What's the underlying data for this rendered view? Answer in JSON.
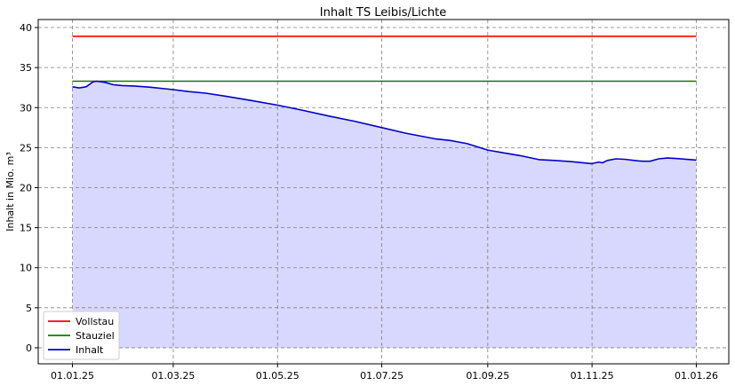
{
  "chart_data": {
    "type": "line",
    "title": "Inhalt TS Leibis/Lichte",
    "xlabel": "",
    "ylabel": "Inhalt in Mio. m³",
    "ylim": [
      -2,
      41
    ],
    "yticks": [
      0,
      5,
      10,
      15,
      20,
      25,
      30,
      35,
      40
    ],
    "xlim": [
      "2024-12-12",
      "2026-01-20"
    ],
    "xticks": [
      {
        "date": "2025-01-01",
        "label": "01.01.25"
      },
      {
        "date": "2025-03-01",
        "label": "01.03.25"
      },
      {
        "date": "2025-05-01",
        "label": "01.05.25"
      },
      {
        "date": "2025-07-01",
        "label": "01.07.25"
      },
      {
        "date": "2025-09-01",
        "label": "01.09.25"
      },
      {
        "date": "2025-11-01",
        "label": "01.11.25"
      },
      {
        "date": "2026-01-01",
        "label": "01.01.26"
      }
    ],
    "grid": true,
    "legend_position": "bottom-left",
    "series": [
      {
        "name": "Vollstau",
        "color": "#ff0000",
        "fill": false,
        "x": [
          "2025-01-01",
          "2026-01-01"
        ],
        "y": [
          38.9,
          38.9
        ]
      },
      {
        "name": "Stauziel",
        "color": "#008000",
        "fill": false,
        "x": [
          "2025-01-01",
          "2026-01-01"
        ],
        "y": [
          33.3,
          33.3
        ]
      },
      {
        "name": "Inhalt",
        "color": "#0000cc",
        "fill": true,
        "fill_color": "#d8d8ff",
        "x": [
          "2025-01-01",
          "2025-01-05",
          "2025-01-09",
          "2025-01-13",
          "2025-01-15",
          "2025-01-20",
          "2025-01-25",
          "2025-01-30",
          "2025-02-06",
          "2025-02-15",
          "2025-03-01",
          "2025-03-10",
          "2025-03-20",
          "2025-04-01",
          "2025-04-15",
          "2025-05-01",
          "2025-05-15",
          "2025-06-01",
          "2025-06-15",
          "2025-07-01",
          "2025-07-15",
          "2025-08-01",
          "2025-08-10",
          "2025-08-20",
          "2025-09-01",
          "2025-09-10",
          "2025-09-20",
          "2025-10-01",
          "2025-10-10",
          "2025-10-20",
          "2025-11-01",
          "2025-11-05",
          "2025-11-07",
          "2025-11-10",
          "2025-11-15",
          "2025-11-20",
          "2025-11-28",
          "2025-12-01",
          "2025-12-05",
          "2025-12-10",
          "2025-12-15",
          "2025-12-20",
          "2026-01-01"
        ],
        "y": [
          32.6,
          32.45,
          32.6,
          33.2,
          33.3,
          33.15,
          32.85,
          32.75,
          32.7,
          32.55,
          32.25,
          32.0,
          31.8,
          31.4,
          30.9,
          30.3,
          29.7,
          28.9,
          28.3,
          27.5,
          26.8,
          26.1,
          25.9,
          25.5,
          24.7,
          24.35,
          24.0,
          23.5,
          23.4,
          23.25,
          23.0,
          23.2,
          23.1,
          23.4,
          23.6,
          23.55,
          23.35,
          23.3,
          23.3,
          23.6,
          23.7,
          23.65,
          23.45
        ]
      }
    ]
  }
}
